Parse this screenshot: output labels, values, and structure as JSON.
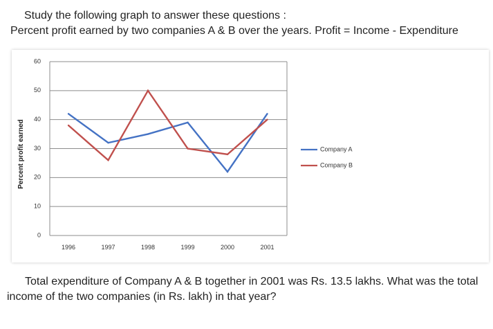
{
  "heading": {
    "line1": "Study the following graph to answer these questions :",
    "line2": "Percent profit earned by two companies A & B over the years. Profit = Income - Expenditure"
  },
  "question": {
    "line1": "Total expenditure of Company A & B together in 2001 was Rs. 13.5 lakhs. What was the total",
    "line2": "income of the two companies (in Rs. lakh) in that year?"
  },
  "chart_data": {
    "type": "line",
    "categories": [
      "1996",
      "1997",
      "1998",
      "1999",
      "2000",
      "2001"
    ],
    "series": [
      {
        "name": "Company A",
        "values": [
          42,
          32,
          35,
          39,
          22,
          42
        ],
        "color": "#4472C4"
      },
      {
        "name": "Company B",
        "values": [
          38,
          26,
          50,
          30,
          28,
          40
        ],
        "color": "#C0504D"
      }
    ],
    "ylabel": "Percent profit earned",
    "xlabel": "",
    "ylim": [
      0,
      60
    ],
    "yticks": [
      0,
      10,
      20,
      30,
      40,
      50,
      60
    ],
    "grid": true,
    "legend": "right"
  }
}
